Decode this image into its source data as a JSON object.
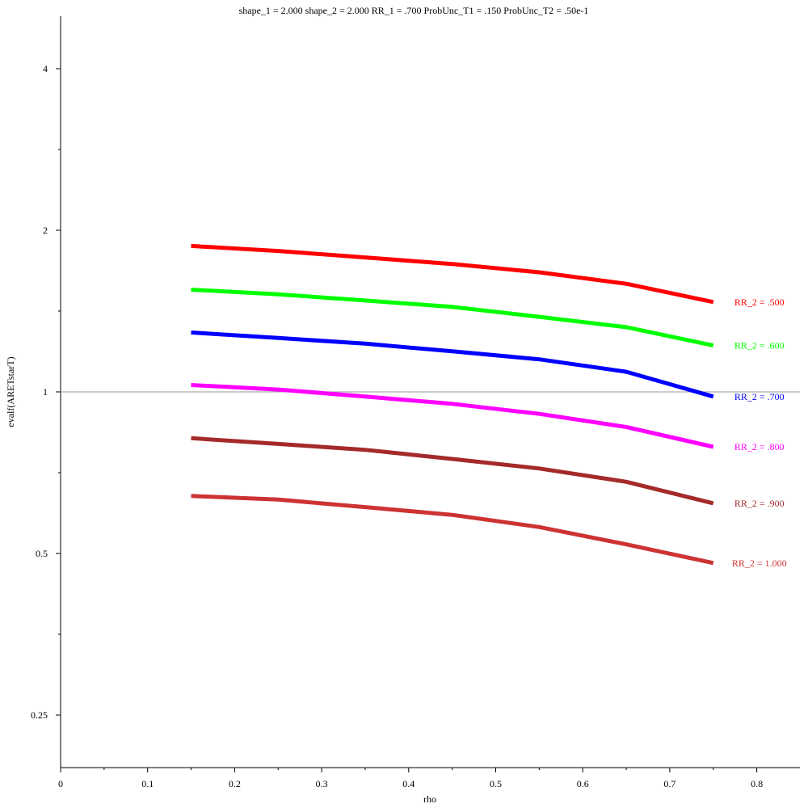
{
  "chart_data": {
    "type": "line",
    "title": "shape_1 = 2.000  shape_2 = 2.000  RR_1 = .700  ProbUnc_T1 = .150  ProbUnc_T2 = .50e-1",
    "xlabel": "rho",
    "ylabel": "evalf(ARETstarT)",
    "xlim": [
      0,
      0.85
    ],
    "ylim": [
      0.2,
      4.8
    ],
    "y_scale": "log2",
    "x_ticks": [
      0,
      0.1,
      0.2,
      0.3,
      0.4,
      0.5,
      0.6,
      0.7,
      0.8
    ],
    "x_tick_labels": [
      "0",
      "0.1",
      "0.2",
      "0.3",
      "0.4",
      "0.5",
      "0.6",
      "0.7",
      "0.8"
    ],
    "y_ticks": [
      0.25,
      0.5,
      1,
      2,
      4
    ],
    "y_tick_labels": [
      "0.25",
      "0.5",
      "1",
      "2",
      "4"
    ],
    "reference_line_y": 1,
    "x": [
      0.15,
      0.25,
      0.35,
      0.45,
      0.55,
      0.65,
      0.75
    ],
    "series": [
      {
        "name": "RR_2 = .500",
        "color": "#ff0000",
        "values": [
          1.87,
          1.83,
          1.78,
          1.73,
          1.67,
          1.59,
          1.47
        ]
      },
      {
        "name": "RR_2 = .600",
        "color": "#00ff00",
        "values": [
          1.55,
          1.52,
          1.48,
          1.44,
          1.38,
          1.32,
          1.22
        ]
      },
      {
        "name": "RR_2 = .700",
        "color": "#0000ff",
        "values": [
          1.29,
          1.26,
          1.23,
          1.19,
          1.15,
          1.09,
          0.98
        ]
      },
      {
        "name": "RR_2 = .800",
        "color": "#ff00ff",
        "values": [
          1.03,
          1.01,
          0.98,
          0.95,
          0.91,
          0.86,
          0.79
        ]
      },
      {
        "name": "RR_2 = .900",
        "color": "#a52a2a",
        "values": [
          0.82,
          0.8,
          0.78,
          0.75,
          0.72,
          0.68,
          0.62
        ]
      },
      {
        "name": "RR_2 = 1.000",
        "color": "#cd3333",
        "values": [
          0.64,
          0.63,
          0.61,
          0.59,
          0.56,
          0.52,
          0.48
        ]
      }
    ],
    "grid": false,
    "legend": "inline-right"
  }
}
